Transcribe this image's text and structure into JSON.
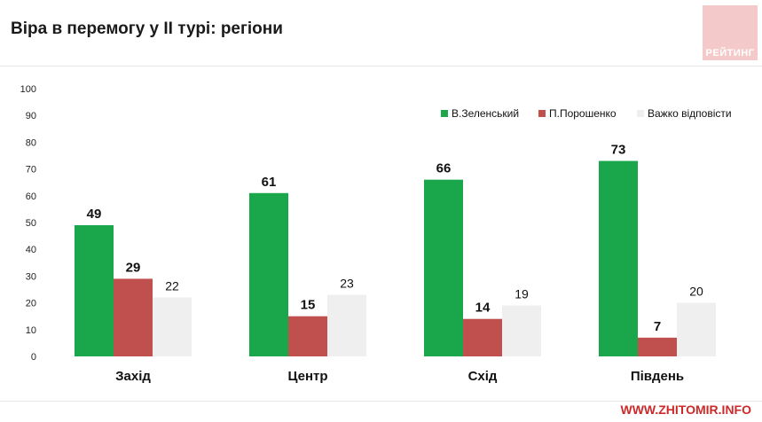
{
  "title": "Віра в перемогу у ІІ турі: регіони",
  "logo_text": "РЕЙТИНГ",
  "watermark": "WWW.ZHITOMIR.INFO",
  "colors": {
    "zelensky": "#1aa64a",
    "poroshenko": "#c0504d",
    "hard": "#efefef",
    "axis_text": "#222222"
  },
  "chart_data": {
    "type": "bar",
    "title": "Віра в перемогу у ІІ турі: регіони",
    "xlabel": "",
    "ylabel": "",
    "ylim": [
      0,
      100
    ],
    "yticks": [
      0,
      10,
      20,
      30,
      40,
      50,
      60,
      70,
      80,
      90,
      100
    ],
    "categories": [
      "Захід",
      "Центр",
      "Схід",
      "Південь"
    ],
    "series": [
      {
        "name": "В.Зеленський",
        "values": [
          49,
          61,
          66,
          73
        ],
        "color_key": "zelensky"
      },
      {
        "name": "П.Порошенко",
        "values": [
          29,
          15,
          14,
          7
        ],
        "color_key": "poroshenko"
      },
      {
        "name": "Важко відповісти",
        "values": [
          22,
          23,
          19,
          20
        ],
        "color_key": "hard"
      }
    ],
    "legend": "top-right",
    "grid": false
  }
}
